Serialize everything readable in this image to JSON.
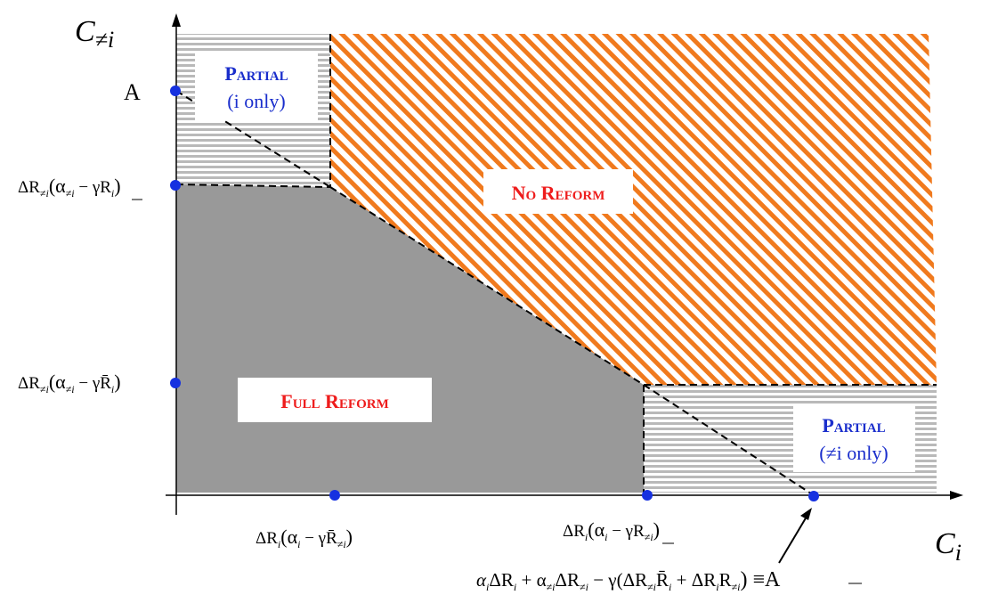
{
  "axes": {
    "x_label_main": "C",
    "x_label_sub": "i",
    "y_label_main": "C",
    "y_label_sub": "≠i"
  },
  "regions": {
    "no_reform": {
      "first": "No",
      "second": "Reform"
    },
    "full_reform": {
      "first": "Full",
      "second": "Reform"
    },
    "partial_i": {
      "title": "Partial",
      "sub": "(i only)"
    },
    "partial_neq": {
      "title": "Partial",
      "sub": "(≠i only)"
    }
  },
  "y_ticks": {
    "A": "A",
    "upper": {
      "pre": "ΔR",
      "sub1": "≠i",
      "mid": "(α",
      "sub2": "≠i",
      "post": " − γR",
      "sub3": "i",
      "end": ")"
    },
    "lower": {
      "pre": "ΔR",
      "sub1": "≠i",
      "mid": "(α",
      "sub2": "≠i",
      "post": " − γR̄",
      "sub3": "i",
      "end": ")"
    }
  },
  "x_ticks": {
    "left": {
      "pre": "ΔR",
      "sub1": "i",
      "mid": "(α",
      "sub2": "i",
      "post": " − γR̄",
      "sub3": "≠i",
      "end": ")"
    },
    "right": {
      "pre": "ΔR",
      "sub1": "i",
      "mid": "(α",
      "sub2": "i",
      "post": " − γR",
      "sub3": "≠i",
      "end": ")"
    }
  },
  "bottom_equation": {
    "t1": "α",
    "s1": "i",
    "t2": "ΔR",
    "s2": "i",
    "t3": " + α",
    "s3": "≠i",
    "t4": "ΔR",
    "s4": "≠i",
    "t5": " − γ(ΔR",
    "s5": "≠i",
    "t6": "R̄",
    "s6": "i",
    "t7": " + ΔR",
    "s7": "i",
    "t8": "R",
    "s8": "≠i",
    "t9": ") ≡A"
  },
  "colors": {
    "orange": "#f07a1e",
    "gray_fill": "#999999",
    "stripe_gray": "#b9b9b9",
    "label_red": "#ee1c1c",
    "label_blue": "#1a2ecc",
    "point_blue": "#1631e0"
  }
}
